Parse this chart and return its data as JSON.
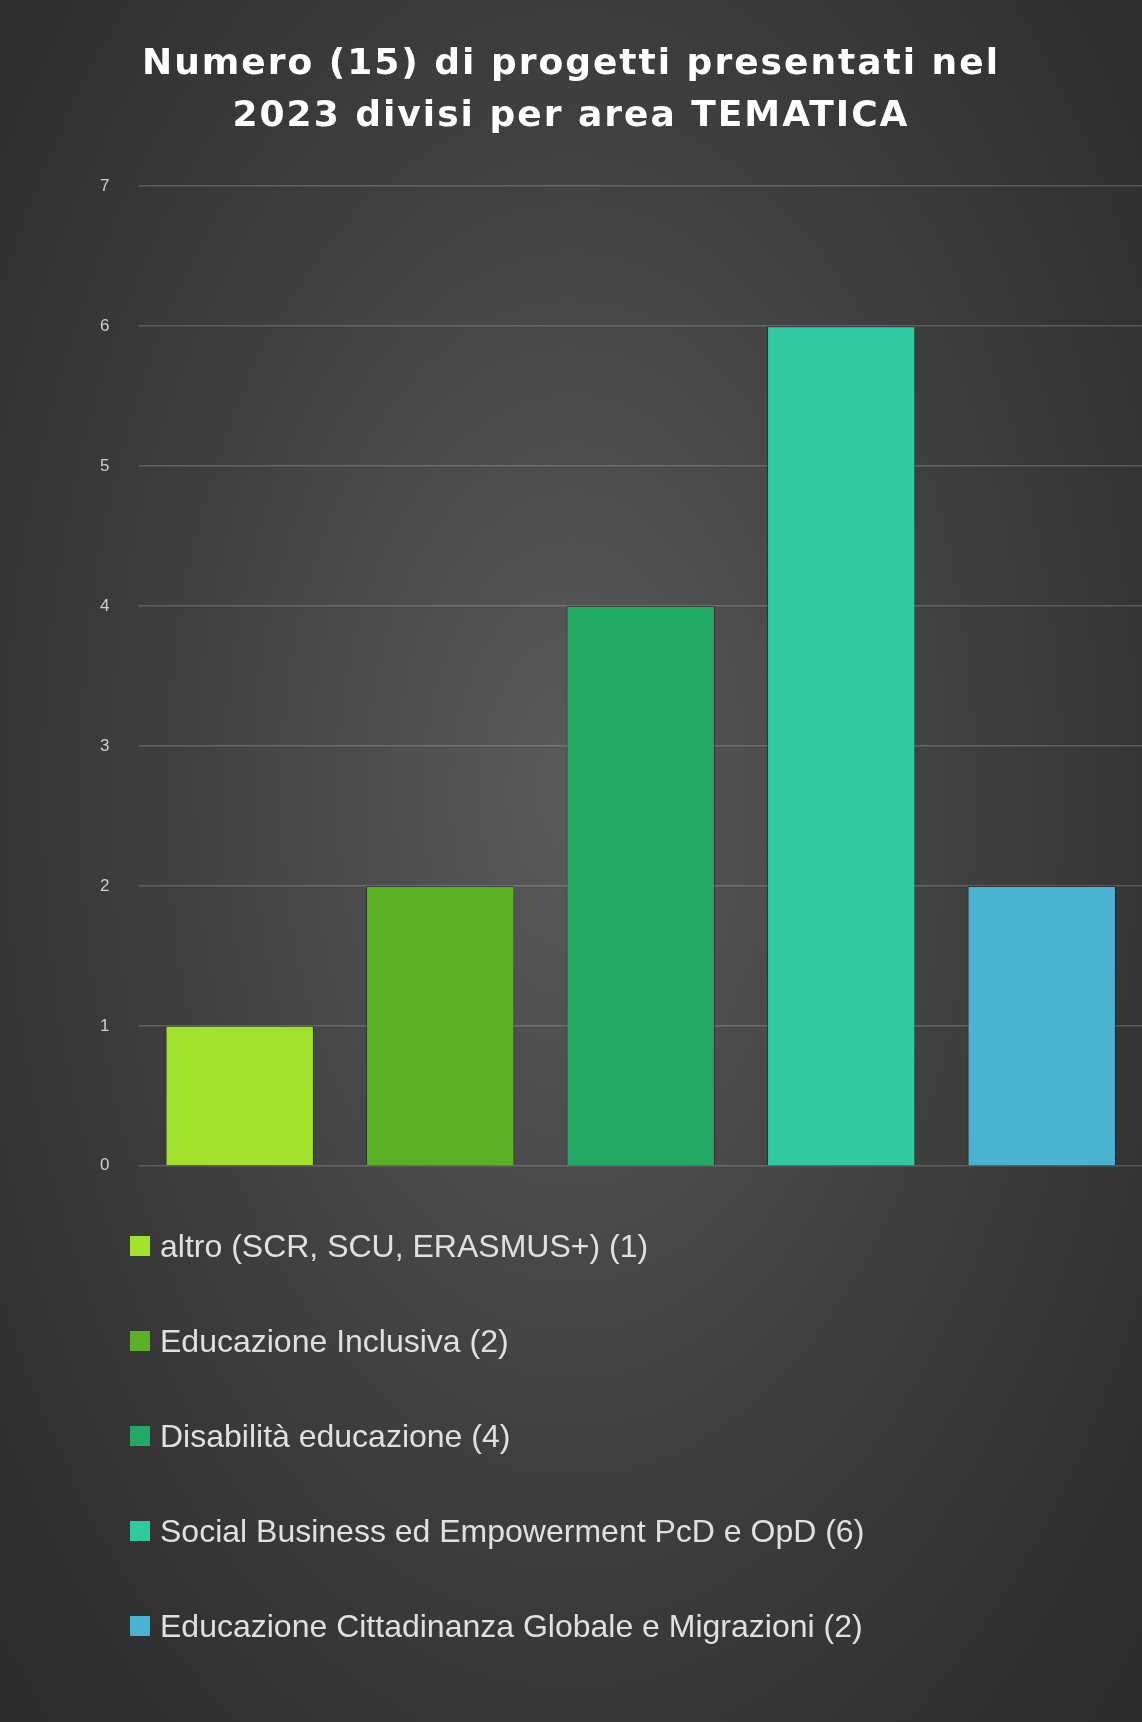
{
  "chart_data": {
    "type": "bar",
    "title": "Numero (15) di progetti presentati nel 2023 divisi per area TEMATICA",
    "categories": [
      null,
      null,
      null,
      null,
      null
    ],
    "series": [
      {
        "name": "altro (SCR, SCU, ERASMUS+) (1)",
        "color": "#a3e22c",
        "values": [
          1,
          null,
          null,
          null,
          null
        ]
      },
      {
        "name": "Educazione Inclusiva (2)",
        "color": "#5bb025",
        "values": [
          null,
          2,
          null,
          null,
          null
        ]
      },
      {
        "name": "Disabilità educazione (4)",
        "color": "#24a865",
        "values": [
          null,
          null,
          4,
          null,
          null
        ]
      },
      {
        "name": "Social Business ed Empowerment PcD e OpD (6)",
        "color": "#31c9a2",
        "values": [
          null,
          null,
          null,
          6,
          null
        ]
      },
      {
        "name": "Educazione Cittadinanza Globale e Migrazioni (2)",
        "color": "#4bb3d2",
        "values": [
          null,
          null,
          null,
          null,
          2
        ]
      }
    ],
    "ylim": [
      0,
      7
    ],
    "yticks": [
      0,
      1,
      2,
      3,
      4,
      5,
      6,
      7
    ],
    "grid": "y",
    "legend": "bottom"
  }
}
